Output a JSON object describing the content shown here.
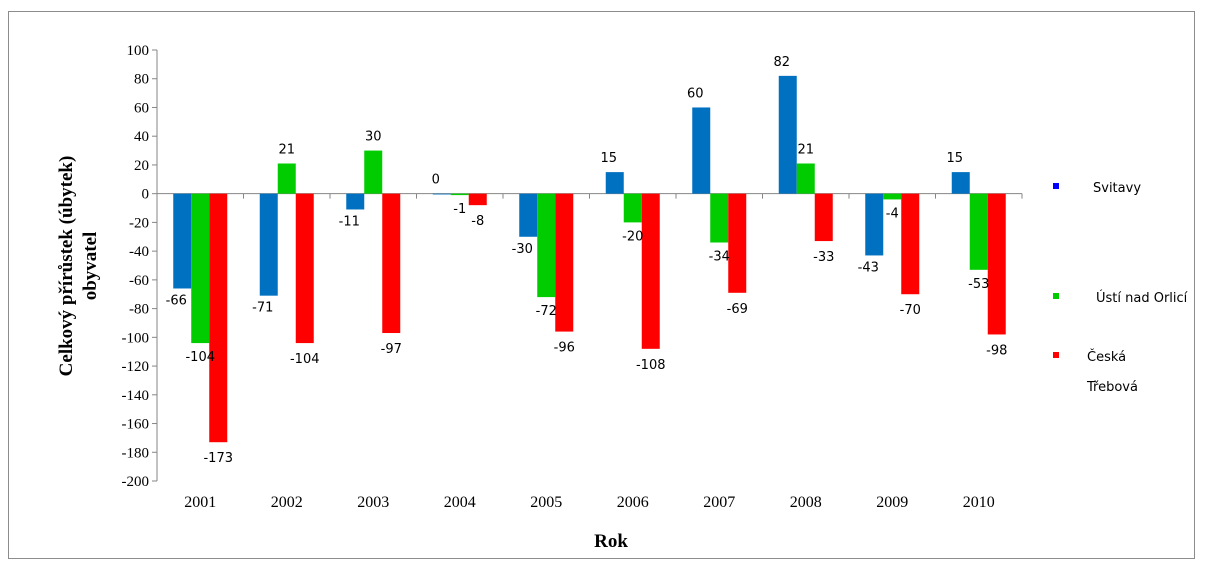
{
  "chart_data": {
    "type": "bar",
    "categories": [
      "2001",
      "2002",
      "2003",
      "2004",
      "2005",
      "2006",
      "2007",
      "2008",
      "2009",
      "2010"
    ],
    "series": [
      {
        "name": "Svitavy",
        "color": "#0070C0",
        "legend_color": "#0000FF",
        "values": [
          -66,
          -71,
          -11,
          0,
          -30,
          15,
          60,
          82,
          -43,
          15
        ]
      },
      {
        "name": "Ústí nad Orlicí",
        "color": "#00CC00",
        "legend_color": "#00CC00",
        "values": [
          -104,
          21,
          30,
          -1,
          -72,
          -20,
          -34,
          21,
          -4,
          -53
        ]
      },
      {
        "name": "Česká Třebová",
        "name_lines": [
          "Česká",
          "Třebová"
        ],
        "color": "#FF0000",
        "legend_color": "#FF0000",
        "values": [
          -173,
          -104,
          -97,
          -8,
          -96,
          -108,
          -69,
          -33,
          -70,
          -98
        ]
      }
    ],
    "ylim": [
      -200,
      100
    ],
    "yticks": [
      100,
      80,
      60,
      40,
      20,
      0,
      -20,
      -40,
      -60,
      -80,
      -100,
      -120,
      -140,
      -160,
      -180,
      -200
    ],
    "xlabel": "Rok",
    "ylabel_lines": [
      "Celkový přírůstek (úbytek)",
      "obyvatel"
    ],
    "legend_position": "right",
    "grid": false
  }
}
